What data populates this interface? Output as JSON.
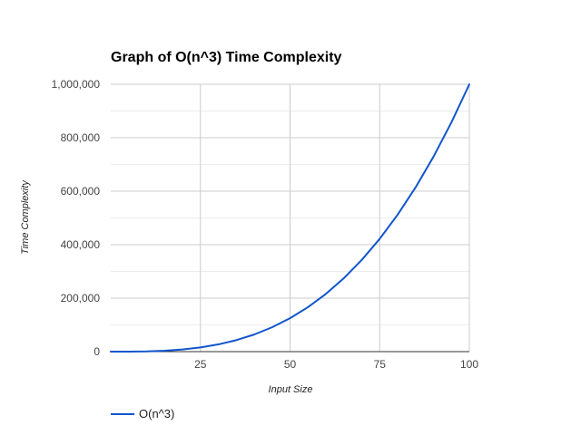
{
  "chart_data": {
    "type": "line",
    "title": "Graph of O(n^3) Time Complexity",
    "xlabel": "Input Size",
    "ylabel": "Time Complexity",
    "xlim": [
      0,
      100
    ],
    "ylim": [
      0,
      1000000
    ],
    "x_ticks": [
      25,
      50,
      75,
      100
    ],
    "x_tick_labels": [
      "25",
      "50",
      "75",
      "100"
    ],
    "y_ticks": [
      0,
      200000,
      400000,
      600000,
      800000,
      1000000
    ],
    "y_tick_labels": [
      "0",
      "200,000",
      "400,000",
      "600,000",
      "800,000",
      "1,000,000"
    ],
    "y_minor_ticks": [
      100000,
      300000,
      500000,
      700000,
      900000
    ],
    "grid": true,
    "legend_position": "bottom",
    "series": [
      {
        "name": "O(n^3)",
        "color": "#1155CC",
        "x": [
          0,
          5,
          10,
          15,
          20,
          25,
          30,
          35,
          40,
          45,
          50,
          55,
          60,
          65,
          70,
          75,
          80,
          85,
          90,
          95,
          100
        ],
        "y": [
          0,
          125,
          1000,
          3375,
          8000,
          15625,
          27000,
          42875,
          64000,
          91125,
          125000,
          166375,
          216000,
          274625,
          343000,
          421875,
          512000,
          614125,
          729000,
          857375,
          1000000
        ]
      }
    ]
  }
}
